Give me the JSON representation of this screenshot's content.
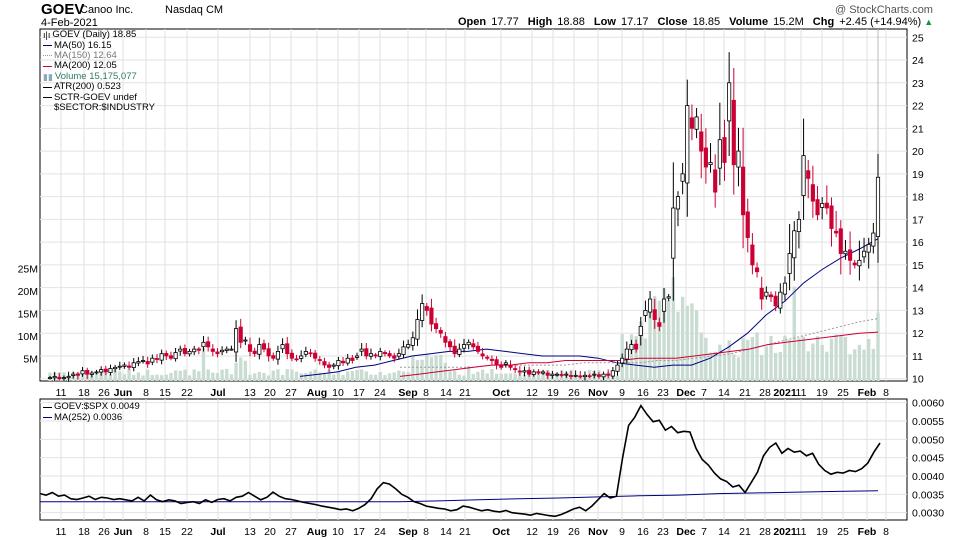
{
  "header": {
    "ticker": "GOEV",
    "company": "Canoo Inc.",
    "exchange": "Nasdaq CM",
    "date": "4-Feb-2021",
    "brand": "@ StockCharts.com",
    "quote": {
      "open_label": "Open",
      "open": "17.77",
      "high_label": "High",
      "high": "18.88",
      "low_label": "Low",
      "low": "17.17",
      "close_label": "Close",
      "close": "18.85",
      "volume_label": "Volume",
      "volume": "15.2M",
      "chg_label": "Chg",
      "chg": "+2.45 (+14.94%)"
    }
  },
  "legend": {
    "price": "GOEV (Daily) 18.85",
    "ma50": "MA(50) 16.15",
    "ma150": "MA(150) 12.64",
    "ma200": "MA(200) 12.05",
    "volume": "Volume 15,175,077",
    "atr": "ATR(200) 0.523",
    "sctr": "SCTR-GOEV undef",
    "sector": "$SECTOR:$INDUSTRY"
  },
  "ratio_legend": {
    "ratio": "GOEV:$SPX 0.0049",
    "ma252": "MA(252) 0.0036"
  },
  "colors": {
    "up": "#000000",
    "down": "#cc0033",
    "ma50": "#000080",
    "ma150": "#999999",
    "ma200": "#cc0033",
    "volume": "#c9dcd2",
    "ratio": "#000000",
    "ratio_ma": "#000080",
    "grid": "#e2e2e2"
  },
  "chart_data": [
    {
      "type": "candlestick",
      "x_labels": [
        "11",
        "18",
        "26",
        "Jun",
        "8",
        "15",
        "22",
        "Jul",
        "13",
        "20",
        "27",
        "Aug",
        "10",
        "17",
        "24",
        "Sep",
        "8",
        "14",
        "21",
        "Oct",
        "12",
        "19",
        "26",
        "Nov",
        "9",
        "16",
        "23",
        "Dec",
        "7",
        "14",
        "21",
        "28",
        "2021",
        "11",
        "19",
        "25",
        "Feb",
        "8"
      ],
      "y_ticks": [
        10,
        11,
        12,
        13,
        14,
        15,
        16,
        17,
        18,
        19,
        20,
        21,
        22,
        23,
        24,
        25
      ],
      "ylim": [
        9.9,
        25.1
      ],
      "volume_ticks": [
        "5M",
        "10M",
        "15M",
        "20M",
        "25M"
      ],
      "volume_tick_values": [
        5,
        10,
        15,
        20,
        25
      ],
      "series": [
        {
          "name": "MA(50)",
          "values": [
            10.1,
            10.2,
            10.3,
            10.5,
            10.6,
            10.8,
            11.0,
            11.1,
            11.2,
            11.2,
            11.3,
            11.2,
            11.1,
            11.0,
            11.0,
            11.0,
            10.9,
            10.7,
            10.6,
            10.5,
            10.6,
            10.6,
            10.9,
            11.4,
            12.0,
            12.8,
            13.4,
            14.2,
            14.8,
            15.3,
            15.7,
            16.15
          ]
        },
        {
          "name": "MA(150)",
          "values": [
            10.5,
            10.5,
            10.5,
            10.5,
            10.5,
            10.6,
            10.6,
            10.6,
            10.6,
            10.6,
            10.7,
            10.7,
            10.7,
            10.7,
            10.8,
            10.8,
            10.9,
            11.0,
            11.1,
            11.3,
            11.5,
            11.7,
            11.9,
            12.1,
            12.3,
            12.5,
            12.64
          ]
        },
        {
          "name": "MA(200)",
          "values": [
            10.1,
            10.2,
            10.3,
            10.4,
            10.5,
            10.6,
            10.6,
            10.7,
            10.7,
            10.8,
            10.8,
            10.8,
            10.8,
            10.9,
            10.9,
            10.9,
            11.0,
            11.1,
            11.2,
            11.3,
            11.5,
            11.6,
            11.7,
            11.8,
            11.9,
            12.0,
            12.05
          ]
        }
      ]
    },
    {
      "type": "line",
      "y_ticks": [
        0.003,
        0.0035,
        0.004,
        0.0045,
        0.005,
        0.0055,
        0.006
      ],
      "y_tick_labels": [
        "0.0030",
        "0.0035",
        "0.0040",
        "0.0045",
        "0.0050",
        "0.0055",
        "0.0060"
      ],
      "ylim": [
        0.0028,
        0.0061
      ],
      "series": [
        {
          "name": "GOEV:$SPX",
          "values": [
            0.00352,
            0.00348,
            0.00355,
            0.00345,
            0.00348,
            0.00338,
            0.00336,
            0.0034,
            0.00345,
            0.00336,
            0.00342,
            0.0034,
            0.00336,
            0.00338,
            0.00335,
            0.00332,
            0.00342,
            0.00332,
            0.00348,
            0.00335,
            0.0033,
            0.00335,
            0.00332,
            0.00325,
            0.00328,
            0.0033,
            0.00325,
            0.00335,
            0.00328,
            0.00336,
            0.00338,
            0.00332,
            0.00342,
            0.00345,
            0.00355,
            0.00345,
            0.00335,
            0.00342,
            0.00356,
            0.00345,
            0.00338,
            0.00336,
            0.00332,
            0.00328,
            0.00325,
            0.00322,
            0.00318,
            0.00315,
            0.00312,
            0.00308,
            0.0031,
            0.00305,
            0.00312,
            0.00322,
            0.00338,
            0.00365,
            0.00382,
            0.00378,
            0.00365,
            0.0035,
            0.00342,
            0.0033,
            0.00325,
            0.00318,
            0.00315,
            0.00312,
            0.0031,
            0.00305,
            0.00308,
            0.00318,
            0.00315,
            0.0031,
            0.00305,
            0.00308,
            0.00304,
            0.00302,
            0.00306,
            0.003,
            0.00298,
            0.00296,
            0.00293,
            0.00298,
            0.00295,
            0.00292,
            0.0029,
            0.00295,
            0.00302,
            0.0031,
            0.00315,
            0.00305,
            0.00318,
            0.00335,
            0.00352,
            0.0034,
            0.00345,
            0.00448,
            0.00538,
            0.0056,
            0.00592,
            0.00568,
            0.00548,
            0.00552,
            0.00525,
            0.00535,
            0.00518,
            0.00522,
            0.0052,
            0.00475,
            0.00445,
            0.0043,
            0.00408,
            0.00392,
            0.00385,
            0.0037,
            0.00375,
            0.00355,
            0.00382,
            0.0041,
            0.00455,
            0.00478,
            0.0049,
            0.00462,
            0.00475,
            0.00465,
            0.00468,
            0.00455,
            0.00462,
            0.00432,
            0.00415,
            0.00405,
            0.0041,
            0.00408,
            0.00415,
            0.00412,
            0.0042,
            0.00435,
            0.00465,
            0.0049
          ]
        },
        {
          "name": "MA(252)",
          "values": [
            0.0033,
            0.0033,
            0.0033,
            0.0033,
            0.0033,
            0.0033,
            0.0033,
            0.0033,
            0.0033,
            0.0033,
            0.00332,
            0.00335,
            0.00338,
            0.0034,
            0.00343,
            0.00346,
            0.00348,
            0.00352,
            0.00354,
            0.00356,
            0.00358,
            0.0036
          ]
        }
      ]
    }
  ]
}
